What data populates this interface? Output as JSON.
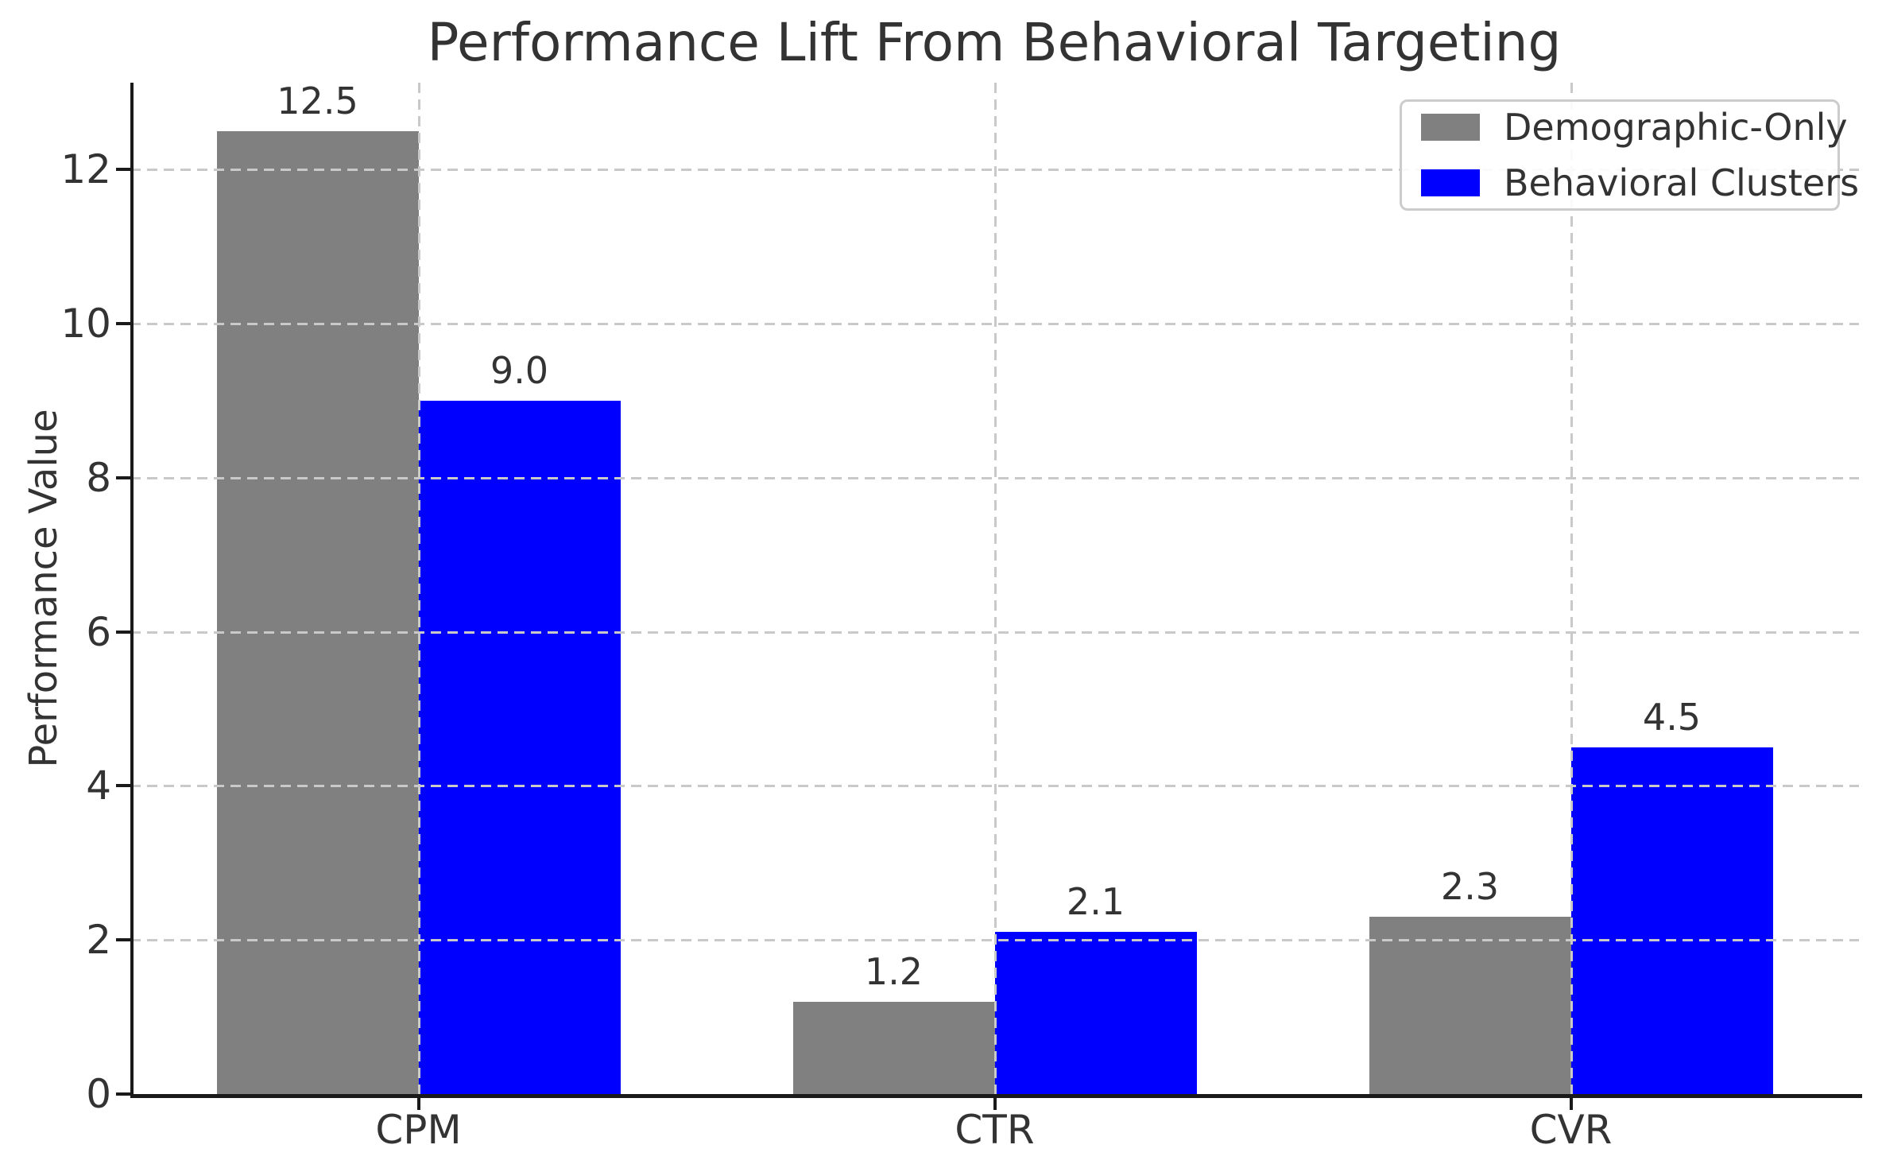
{
  "figure": {
    "title": "Performance Lift From Behavioral Targeting",
    "background_color": "#ffffff"
  },
  "chart_data": {
    "type": "bar",
    "title": "Performance Lift From Behavioral Targeting",
    "xlabel": "",
    "ylabel": "Performance Value",
    "categories": [
      "CPM",
      "CTR",
      "CVR"
    ],
    "series": [
      {
        "name": "Demographic-Only",
        "color": "#808080",
        "values": [
          12.5,
          1.2,
          2.3
        ],
        "value_labels": [
          "12.5",
          "1.2",
          "2.3"
        ]
      },
      {
        "name": "Behavioral Clusters",
        "color": "#0000ff",
        "values": [
          9.0,
          2.1,
          4.5
        ],
        "value_labels": [
          "9.0",
          "2.1",
          "4.5"
        ]
      }
    ],
    "ylim": [
      0,
      13.125
    ],
    "yticks": [
      0,
      2,
      4,
      6,
      8,
      10,
      12
    ],
    "ytick_labels": [
      "0",
      "2",
      "4",
      "6",
      "8",
      "10",
      "12"
    ],
    "grid": "dashed gridlines on both axes, drawn above bars",
    "grid_color": "#c9c9c9",
    "legend_position": "upper right",
    "bar_value_labels": true,
    "bar_group_layout": "two adjacent bars per category, gray left of center, blue right of center"
  },
  "colors": {
    "spine": "#1a1a1a",
    "text": "#333333",
    "grid": "#c9c9c9",
    "background": "#ffffff"
  }
}
